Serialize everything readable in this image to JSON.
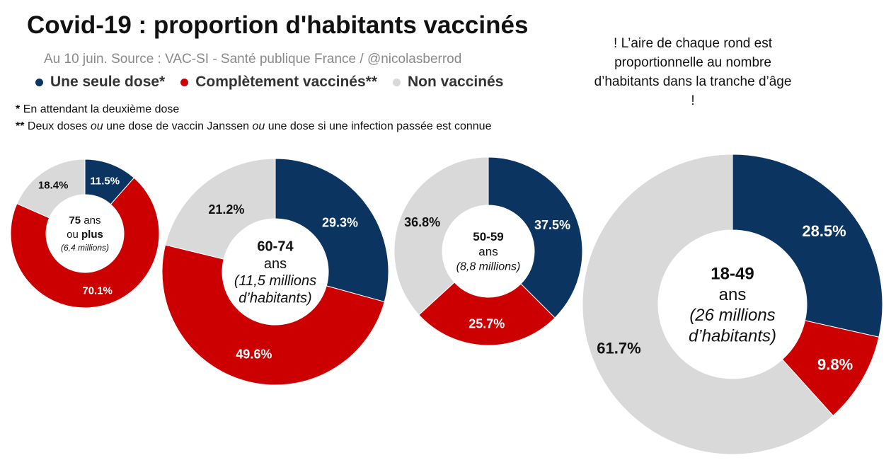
{
  "title": "Covid-19 : proportion d'habitants vaccinés",
  "subtitle": "Au 10 juin. Source : VAC-SI - Santé publique France / @nicolasberrod",
  "legend": [
    {
      "label": "Une seule dose*",
      "color": "#0b3560"
    },
    {
      "label": "Complètement vaccinés**",
      "color": "#cc0000"
    },
    {
      "label": "Non vaccinés",
      "color": "#d9d9d9"
    }
  ],
  "notes": {
    "single_dose_star": "*",
    "single_dose_text": "En attendant la deuxième dose",
    "full_stars": "**",
    "full_part1": "Deux doses ",
    "full_or1": "ou",
    "full_part2": " une dose de vaccin Janssen ",
    "full_or2": "ou",
    "full_part3": " une dose si une infection passée est connue"
  },
  "aside_note": "! L’aire de chaque rond est proportionnelle au nombre d’habitants dans la tranche d’âge !",
  "chart_data": {
    "type": "donut",
    "series_names": [
      "Une seule dose",
      "Complètement vaccinés",
      "Non vaccinés"
    ],
    "colors": [
      "#0b3560",
      "#cc0000",
      "#d9d9d9"
    ],
    "groups": [
      {
        "age": "75",
        "age_suffix": " ans",
        "line2_pre": "ou ",
        "line2_bold": "plus",
        "population": "(6,4 millions)",
        "population_millions": 6.4,
        "values": [
          11.5,
          70.1,
          18.4
        ],
        "labels": [
          "11.5%",
          "70.1%",
          "18.4%"
        ]
      },
      {
        "age": "60-74",
        "line2": "ans",
        "population": "(11,5 millions d’habitants)",
        "population_lines": [
          "(11,5 millions",
          "d’habitants)"
        ],
        "population_millions": 11.5,
        "values": [
          29.3,
          49.6,
          21.2
        ],
        "labels": [
          "29.3%",
          "49.6%",
          "21.2%"
        ]
      },
      {
        "age": "50-59",
        "line2": "ans",
        "population": "(8,8 millions)",
        "population_millions": 8.8,
        "values": [
          37.5,
          25.7,
          36.8
        ],
        "labels": [
          "37.5%",
          "25.7%",
          "36.8%"
        ]
      },
      {
        "age": "18-49",
        "line2": "ans",
        "population": "(26 millions d’habitants)",
        "population_lines": [
          "(26 millions",
          "d’habitants)"
        ],
        "population_millions": 26,
        "values": [
          28.5,
          9.8,
          61.7
        ],
        "labels": [
          "28.5%",
          "9.8%",
          "61.7%"
        ]
      }
    ]
  }
}
